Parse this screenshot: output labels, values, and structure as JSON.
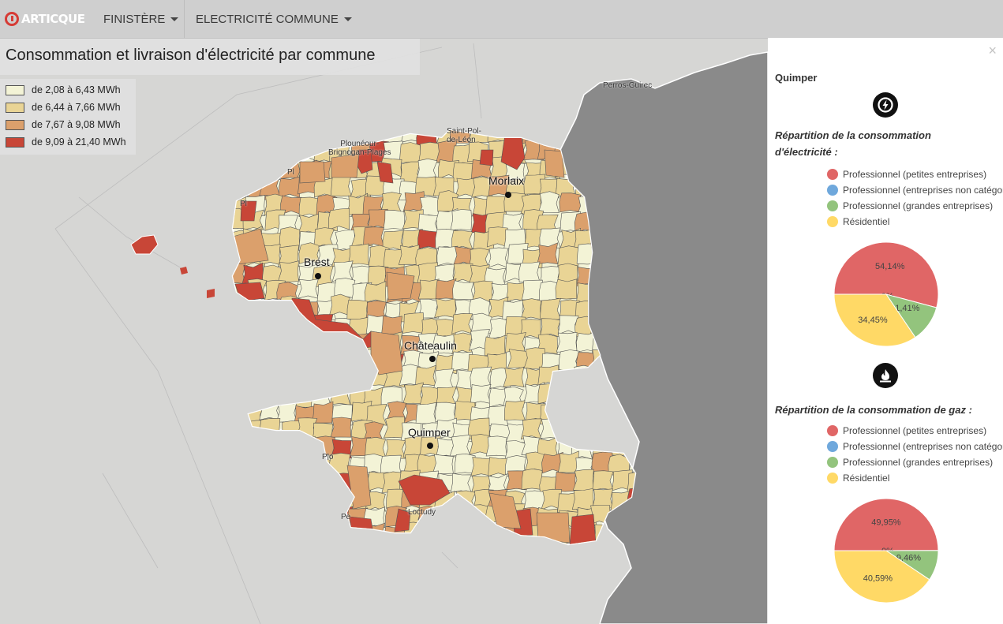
{
  "header": {
    "logo_text": "ARTICQUE",
    "region_menu": "FINISTÈRE",
    "indicator_menu": "ELECTRICITÉ COMMUNE"
  },
  "map": {
    "title": "Consommation et livraison d'électricité par commune",
    "legend": [
      {
        "label": "de 2,08 à 6,43 MWh",
        "color": "#f3f3d6"
      },
      {
        "label": "de 6,44 à 7,66 MWh",
        "color": "#e9d495"
      },
      {
        "label": "de 7,67 à 9,08 MWh",
        "color": "#dba06c"
      },
      {
        "label": "de 9,09 à 21,40 MWh",
        "color": "#c84637"
      }
    ],
    "cities": {
      "brest": "Brest",
      "morlaix": "Morlaix",
      "chateaulin": "Châteaulin",
      "quimper": "Quimper"
    },
    "basemap_labels": {
      "plouneour": "Plounéour-\nBrignogan-Plages",
      "saint_pol": "Saint-Pol-\nde-Léon",
      "perros": "Perros-Guirec",
      "pont_labbe": "Loctudy",
      "pl1": "Pl",
      "pl2": "Pl",
      "pl3": "Plo",
      "pe": "Pe"
    }
  },
  "panel": {
    "close": "×",
    "commune": "Quimper",
    "elec_icon": "lightning-icon",
    "gas_icon": "flame-icon",
    "elec_title_line1": "Répartition de la consommation",
    "elec_title_line2": "d'électricité :",
    "gas_title": "Répartition de la consommation de gaz :",
    "legend": [
      {
        "label": "Professionnel (petites entreprises)",
        "color": "#e06666"
      },
      {
        "label": "Professionnel (entreprises non catégorisées)",
        "color": "#6fa8dc"
      },
      {
        "label": "Professionnel (grandes entreprises)",
        "color": "#93c47d"
      },
      {
        "label": "Résidentiel",
        "color": "#ffd966"
      }
    ],
    "elec_pie": {
      "values": [
        54.14,
        0,
        11.41,
        34.45
      ],
      "labels": [
        "54,14%",
        "0%",
        "11,41%",
        "34,45%"
      ]
    },
    "gas_pie": {
      "values": [
        49.95,
        0,
        9.46,
        40.59
      ],
      "labels": [
        "49,95%",
        "0%",
        "9,46%",
        "40,59%"
      ]
    }
  }
}
